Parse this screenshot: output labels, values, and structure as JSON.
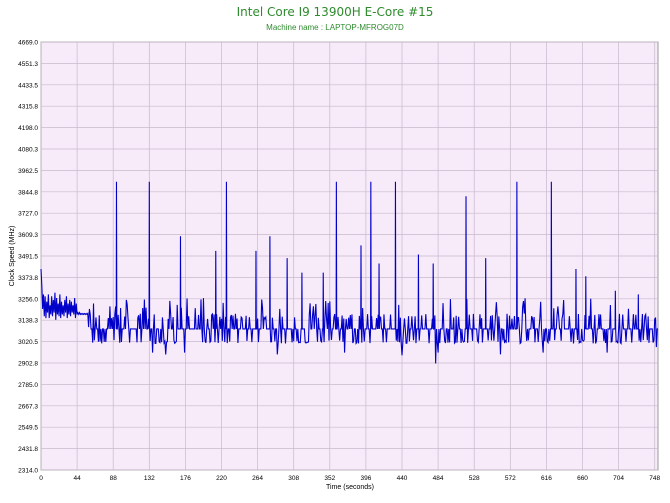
{
  "chart_data": {
    "type": "line",
    "title": "Intel Core I9 13900H E-Core #15",
    "subtitle": "Machine name : LAPTOP-MFROG07D",
    "xlabel": "Time (seconds)",
    "ylabel": "Clock Speed (MHz)",
    "xlim": [
      0,
      752
    ],
    "ylim": [
      2314.0,
      4669.0
    ],
    "xticks": [
      "0",
      "44",
      "88",
      "132",
      "176",
      "220",
      "264",
      "308",
      "352",
      "396",
      "440",
      "484",
      "528",
      "572",
      "616",
      "660",
      "704",
      "748"
    ],
    "yticks": [
      "4669.0",
      "4551.3",
      "4433.5",
      "4315.8",
      "4198.0",
      "4080.3",
      "3962.5",
      "3844.8",
      "3727.0",
      "3609.3",
      "3491.5",
      "3373.8",
      "3256.0",
      "3138.3",
      "3020.5",
      "2902.8",
      "2785.0",
      "2667.3",
      "2549.5",
      "2431.8",
      "2314.0"
    ],
    "grid": true,
    "legend": "none",
    "series_color": "#0000c8",
    "title_color": "#2e8b2e",
    "plot_bg": "#f7eaf9",
    "baseline": 3090,
    "series": [
      {
        "x": [
          0,
          1,
          2,
          3,
          4,
          5,
          6,
          7,
          8,
          9,
          10,
          11,
          12,
          13,
          14,
          15,
          16,
          17,
          18,
          19,
          20,
          21,
          22,
          23,
          24,
          25,
          26,
          27,
          28,
          29,
          30,
          31,
          32,
          33,
          34,
          35,
          36,
          37,
          38,
          39,
          40,
          41,
          42,
          43,
          44,
          45,
          46,
          47,
          48,
          49,
          50,
          51,
          52,
          53,
          54,
          55,
          56,
          57,
          58,
          59,
          60
        ],
        "values": [
          3420,
          3330,
          3200,
          3280,
          3160,
          3270,
          3150,
          3240,
          3180,
          3280,
          3150,
          3220,
          3170,
          3270,
          3160,
          3250,
          3180,
          3290,
          3140,
          3260,
          3170,
          3230,
          3160,
          3280,
          3150,
          3240,
          3170,
          3220,
          3160,
          3250,
          3180,
          3270,
          3150,
          3230,
          3170,
          3250,
          3160,
          3240,
          3180,
          3220,
          3170,
          3260,
          3150,
          3230,
          3170,
          3180,
          3170,
          3180,
          3170,
          3175,
          3170,
          3175,
          3170,
          3175,
          3170,
          3175,
          3170,
          3175,
          3100,
          3200,
          3170
        ]
      }
    ],
    "spikes": [
      {
        "x": 54,
        "y": 3900
      },
      {
        "x": 92,
        "y": 3900
      },
      {
        "x": 132,
        "y": 3900
      },
      {
        "x": 170,
        "y": 3600
      },
      {
        "x": 213,
        "y": 3520
      },
      {
        "x": 226,
        "y": 3900
      },
      {
        "x": 262,
        "y": 3520
      },
      {
        "x": 279,
        "y": 3600
      },
      {
        "x": 300,
        "y": 3480
      },
      {
        "x": 318,
        "y": 3400
      },
      {
        "x": 344,
        "y": 3400
      },
      {
        "x": 360,
        "y": 3900
      },
      {
        "x": 390,
        "y": 3550
      },
      {
        "x": 402,
        "y": 3900
      },
      {
        "x": 412,
        "y": 3450
      },
      {
        "x": 432,
        "y": 3900
      },
      {
        "x": 460,
        "y": 3500
      },
      {
        "x": 478,
        "y": 3450
      },
      {
        "x": 518,
        "y": 3820
      },
      {
        "x": 542,
        "y": 3480
      },
      {
        "x": 580,
        "y": 3900
      },
      {
        "x": 622,
        "y": 3900
      },
      {
        "x": 652,
        "y": 3420
      },
      {
        "x": 664,
        "y": 3380
      },
      {
        "x": 700,
        "y": 3300
      },
      {
        "x": 728,
        "y": 3280
      }
    ],
    "dips": [
      {
        "x": 136,
        "y": 2960
      },
      {
        "x": 152,
        "y": 2950
      },
      {
        "x": 175,
        "y": 2960
      },
      {
        "x": 288,
        "y": 2950
      },
      {
        "x": 370,
        "y": 2960
      },
      {
        "x": 440,
        "y": 2945
      },
      {
        "x": 481,
        "y": 2900
      },
      {
        "x": 484,
        "y": 2960
      },
      {
        "x": 560,
        "y": 2950
      },
      {
        "x": 612,
        "y": 2960
      },
      {
        "x": 690,
        "y": 2960
      },
      {
        "x": 750,
        "y": 2990
      }
    ]
  }
}
